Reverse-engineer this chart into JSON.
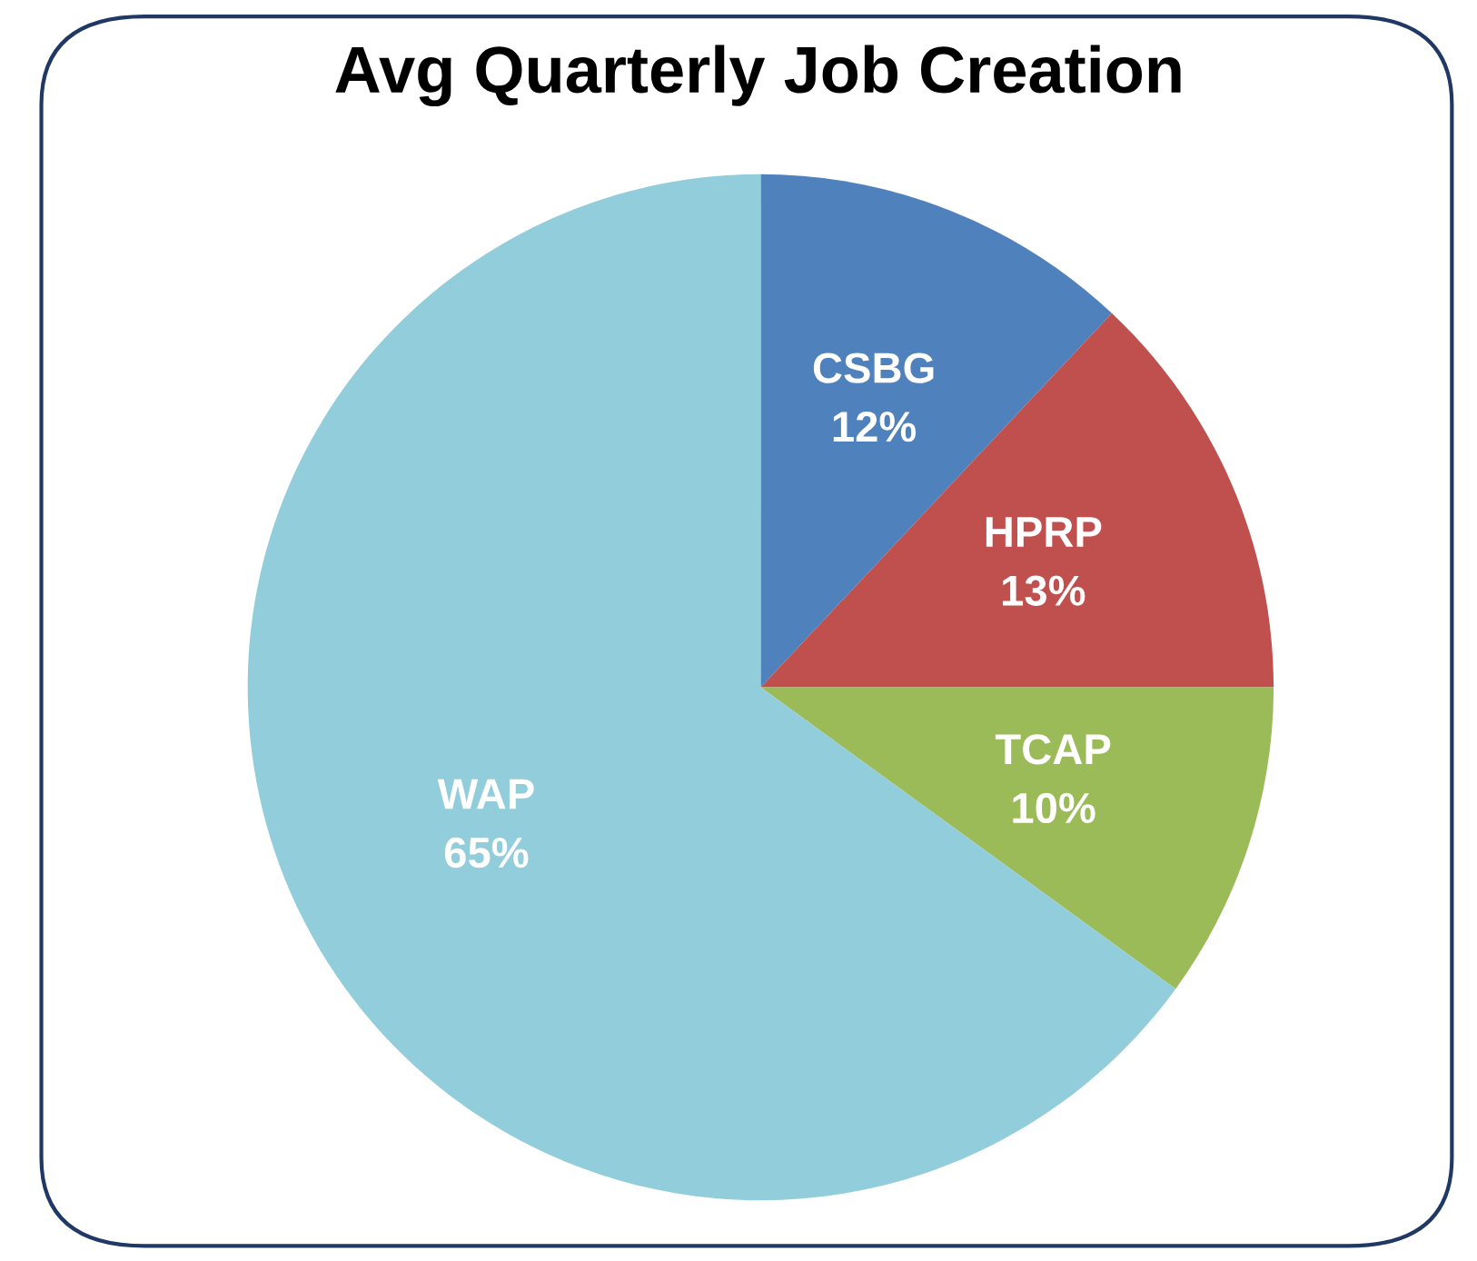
{
  "chart_data": {
    "type": "pie",
    "title": "Avg Quarterly Job Creation",
    "categories": [
      "CSBG",
      "HPRP",
      "TCAP",
      "WAP"
    ],
    "values": [
      12,
      13,
      10,
      65
    ],
    "colors": [
      "#4f81bd",
      "#c0504d",
      "#9bbb59",
      "#92cddc"
    ],
    "value_labels": [
      "12%",
      "13%",
      "10%",
      "65%"
    ]
  }
}
